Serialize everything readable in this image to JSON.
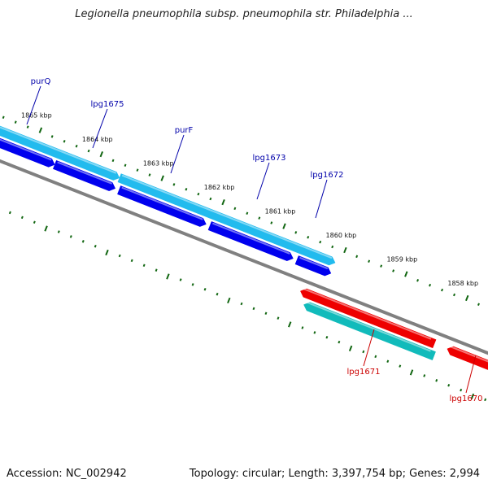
{
  "title": "Legionella pneumophila subsp. pneumophila str. Philadelphia ...",
  "footer": {
    "accession": "Accession: NC_002942",
    "topology": "Topology: circular; Length: 3,397,754 bp; Genes: 2,994"
  },
  "colors": {
    "forward_cds": "#0000ee",
    "forward_gene": "#22bbee",
    "reverse_cds": "#ee0000",
    "reverse_gene": "#11bbbb",
    "backbone": "#808080",
    "tick": "#116611",
    "label_forward": "#0000aa",
    "label_reverse": "#cc0000"
  },
  "scale_ticks": [
    {
      "kbp": 1865,
      "label": "1865 kbp"
    },
    {
      "kbp": 1864,
      "label": "1864 kbp"
    },
    {
      "kbp": 1863,
      "label": "1863 kbp"
    },
    {
      "kbp": 1862,
      "label": "1862 kbp"
    },
    {
      "kbp": 1861,
      "label": "1861 kbp"
    },
    {
      "kbp": 1860,
      "label": "1860 kbp"
    },
    {
      "kbp": 1859,
      "label": "1859 kbp"
    },
    {
      "kbp": 1858,
      "label": "1858 kbp"
    }
  ],
  "genes": [
    {
      "name": "purQ",
      "strand": "forward"
    },
    {
      "name": "lpg1675",
      "strand": "forward"
    },
    {
      "name": "purF",
      "strand": "forward"
    },
    {
      "name": "lpg1673",
      "strand": "forward"
    },
    {
      "name": "lpg1672",
      "strand": "forward"
    },
    {
      "name": "lpg1671",
      "strand": "reverse"
    },
    {
      "name": "lpg1670",
      "strand": "reverse"
    }
  ]
}
